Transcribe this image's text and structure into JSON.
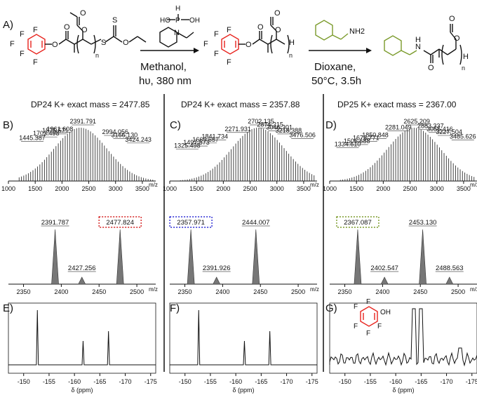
{
  "labels": {
    "A": "A)",
    "B": "B)",
    "C": "C)",
    "D": "D)",
    "E": "E)",
    "F": "F)",
    "G": "G)"
  },
  "scheme": {
    "step1_line1": "Methanol,",
    "step1_line2": "hυ, 380 nm",
    "step2_line1": "Dioxane,",
    "step2_line2": "50°C, 3.5h",
    "nh2": "NH2",
    "nh": "H",
    "n_sub": "n",
    "colors": {
      "pfp": "#e8221c",
      "benzyl": "#7a9a2a",
      "h_end": "#2b2bd6"
    }
  },
  "columns": [
    {
      "title": "DP24 K+ exact mass = 2477.85",
      "ms": {
        "peaks": [
          1445.387,
          1703.498,
          1875.571,
          1961.608,
          2391.791,
          2994.056,
          3166.13,
          3424.243
        ],
        "xticks": [
          "1000",
          "1500",
          "2000",
          "2500",
          "3000",
          "3500"
        ],
        "unit": "m/z"
      },
      "zoom": {
        "peaks": [
          2391.787,
          2427.256,
          2477.824
        ],
        "boxed": "2477.824",
        "box_color": "#d42020",
        "xticks": [
          "2350",
          "2400",
          "2450",
          "2500"
        ],
        "unit": "m/z"
      },
      "nmr": {
        "xticks": [
          "-150",
          "-155",
          "-160",
          "-165",
          "-170",
          "-175"
        ],
        "xlabel": "δ (ppm)"
      }
    },
    {
      "title": "DP24 K+ exact mass = 2357.88",
      "ms": {
        "peaks": [
          1325.498,
          1497.573,
          1669.657,
          1841.734,
          2271.931,
          2702.135,
          2874.215,
          3046.301,
          3218.388,
          3476.506
        ],
        "xticks": [
          "1000",
          "1500",
          "2000",
          "2500",
          "3000",
          "3500"
        ],
        "unit": "m/z"
      },
      "zoom": {
        "peaks": [
          2357.971,
          2391.926,
          2444.007
        ],
        "boxed": "2357.971",
        "box_color": "#2a2ad4",
        "xticks": [
          "2350",
          "2400",
          "2450",
          "2500"
        ],
        "unit": "m/z"
      },
      "nmr": {
        "xticks": [
          "-150",
          "-155",
          "-160",
          "-165",
          "-170",
          "-175"
        ],
        "xlabel": "δ (ppm)"
      }
    },
    {
      "title": "DP25 K+ exact mass = 2367.00",
      "ms": {
        "peaks": [
          1334.61,
          1506.688,
          1678.771,
          1850.848,
          2281.049,
          2625.209,
          2883.337,
          3055.416,
          3227.504,
          3485.626
        ],
        "xticks": [
          "1000",
          "1500",
          "2000",
          "2500",
          "3000",
          "3500"
        ],
        "unit": "m/z"
      },
      "zoom": {
        "peaks": [
          2367.087,
          2402.547,
          2453.13,
          2488.563
        ],
        "boxed": "2367.087",
        "box_color": "#7a9a2a",
        "xticks": [
          "2350",
          "2400",
          "2450",
          "2500"
        ],
        "unit": "m/z"
      },
      "nmr": {
        "xticks": [
          "-150",
          "-155",
          "-160",
          "-165",
          "-170",
          "-175"
        ],
        "xlabel": "δ (ppm)",
        "inset_oh": "OH"
      }
    }
  ]
}
